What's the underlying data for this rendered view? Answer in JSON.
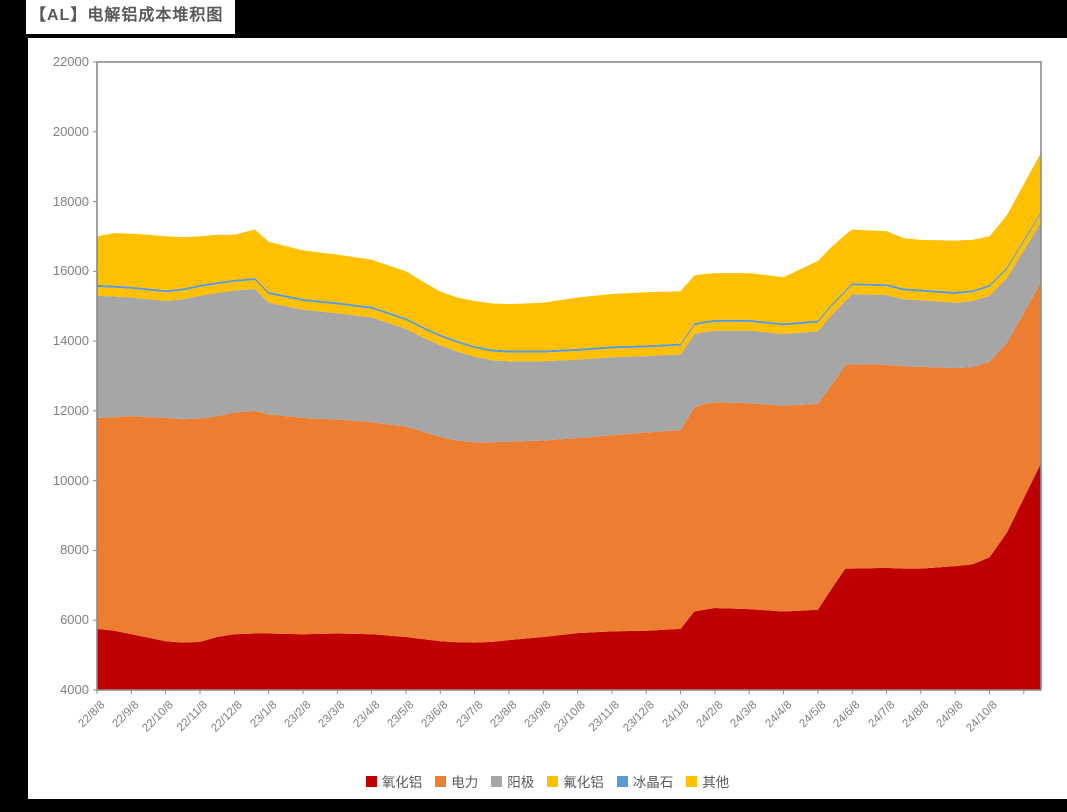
{
  "title": "【AL】电解铝成本堆积图",
  "legend": {
    "items": [
      {
        "label": "氧化铝",
        "color": "#C00000"
      },
      {
        "label": "电力",
        "color": "#ED7D31"
      },
      {
        "label": "阳极",
        "color": "#A6A6A6"
      },
      {
        "label": "氟化铝",
        "color": "#FFC000"
      },
      {
        "label": "冰晶石",
        "color": "#5B9BD5"
      },
      {
        "label": "其他",
        "color": "#FFC000"
      }
    ]
  },
  "chart_data": {
    "type": "area",
    "stacked": true,
    "title": "【AL】电解铝成本堆积图",
    "xlabel": "",
    "ylabel": "",
    "grid": false,
    "legend_position": "bottom",
    "y_axis": {
      "min": 4000,
      "max": 22000,
      "step": 2000,
      "tick_values": [
        4000,
        6000,
        8000,
        10000,
        12000,
        14000,
        16000,
        18000,
        20000,
        22000
      ],
      "tick_labels": [
        "4000",
        "6000",
        "8000",
        "10000",
        "12000",
        "14000",
        "16000",
        "18000",
        "20000",
        "22000"
      ]
    },
    "x_axis": {
      "unit": "months since 22/8/8",
      "range": [
        0,
        27.5
      ],
      "tick_labels": [
        "22/8/8",
        "22/9/8",
        "22/10/8",
        "22/11/8",
        "22/12/8",
        "23/1/8",
        "23/2/8",
        "23/3/8",
        "23/4/8",
        "23/5/8",
        "23/6/8",
        "23/7/8",
        "23/8/8",
        "23/9/8",
        "23/10/8",
        "23/11/8",
        "23/12/8",
        "24/1/8",
        "24/2/8",
        "24/3/8",
        "24/4/8",
        "24/5/8",
        "24/6/8",
        "24/7/8",
        "24/8/8",
        "24/9/8",
        "24/10/8"
      ]
    },
    "baseline_clip": 4000,
    "x": [
      0,
      0.5,
      1,
      1.5,
      2,
      2.5,
      3,
      3.5,
      4,
      4.6,
      5,
      6,
      7,
      8,
      9,
      9.5,
      10,
      10.5,
      11,
      11.5,
      12,
      13,
      14,
      15,
      16,
      17,
      17.4,
      17.7,
      18,
      19,
      20,
      21,
      21.4,
      21.8,
      22,
      23,
      23.5,
      24,
      25,
      25.5,
      26,
      26.5,
      27,
      27.5
    ],
    "series": [
      {
        "name": "氧化铝",
        "color": "#C00000",
        "cumulative": [
          5750,
          5700,
          5600,
          5500,
          5400,
          5360,
          5380,
          5520,
          5600,
          5620,
          5620,
          5600,
          5620,
          5600,
          5520,
          5460,
          5400,
          5370,
          5360,
          5380,
          5430,
          5520,
          5630,
          5680,
          5700,
          5750,
          6250,
          6300,
          6350,
          6320,
          6250,
          6300,
          6900,
          7480,
          7480,
          7500,
          7480,
          7480,
          7550,
          7600,
          7800,
          8500,
          9500,
          10500
        ]
      },
      {
        "name": "电力",
        "color": "#ED7D31",
        "cumulative": [
          11800,
          11820,
          11850,
          11820,
          11800,
          11760,
          11780,
          11850,
          11950,
          12000,
          11900,
          11800,
          11750,
          11680,
          11550,
          11400,
          11250,
          11150,
          11100,
          11100,
          11120,
          11150,
          11220,
          11300,
          11380,
          11450,
          12100,
          12200,
          12250,
          12220,
          12150,
          12200,
          12750,
          13300,
          13340,
          13320,
          13280,
          13260,
          13230,
          13250,
          13400,
          13950,
          14800,
          15700
        ]
      },
      {
        "name": "阳极",
        "color": "#A6A6A6",
        "cumulative": [
          15300,
          15280,
          15250,
          15200,
          15150,
          15200,
          15300,
          15380,
          15450,
          15500,
          15100,
          14900,
          14800,
          14680,
          14350,
          14100,
          13880,
          13700,
          13550,
          13450,
          13420,
          13420,
          13470,
          13540,
          13570,
          13620,
          14200,
          14260,
          14300,
          14300,
          14200,
          14280,
          14750,
          15150,
          15350,
          15320,
          15200,
          15170,
          15100,
          15150,
          15300,
          15800,
          16600,
          17400
        ]
      },
      {
        "name": "氟化铝",
        "color": "#FFC000",
        "cumulative": [
          15550,
          15530,
          15500,
          15450,
          15400,
          15450,
          15550,
          15630,
          15700,
          15750,
          15350,
          15150,
          15050,
          14930,
          14600,
          14350,
          14130,
          13950,
          13800,
          13700,
          13670,
          13670,
          13720,
          13790,
          13820,
          13870,
          14450,
          14510,
          14550,
          14550,
          14450,
          14530,
          15000,
          15400,
          15600,
          15570,
          15450,
          15420,
          15350,
          15400,
          15550,
          16050,
          16850,
          17650
        ]
      },
      {
        "name": "冰晶石",
        "color": "#5B9BD5",
        "cumulative": [
          15610,
          15590,
          15560,
          15510,
          15460,
          15510,
          15610,
          15690,
          15760,
          15810,
          15410,
          15210,
          15110,
          14990,
          14660,
          14410,
          14190,
          14010,
          13860,
          13760,
          13730,
          13730,
          13780,
          13850,
          13880,
          13930,
          14510,
          14570,
          14610,
          14610,
          14510,
          14590,
          15060,
          15460,
          15660,
          15630,
          15510,
          15480,
          15410,
          15460,
          15610,
          16110,
          16910,
          17710
        ]
      },
      {
        "name": "其他",
        "color": "#FFC000",
        "cumulative": [
          17000,
          17100,
          17080,
          17050,
          17000,
          16980,
          17000,
          17050,
          17050,
          17200,
          16850,
          16600,
          16480,
          16330,
          16000,
          15700,
          15420,
          15250,
          15150,
          15080,
          15060,
          15100,
          15250,
          15350,
          15400,
          15430,
          15880,
          15920,
          15950,
          15950,
          15830,
          16300,
          16700,
          17050,
          17200,
          17150,
          16950,
          16900,
          16880,
          16900,
          17000,
          17600,
          18500,
          19400
        ]
      }
    ]
  }
}
